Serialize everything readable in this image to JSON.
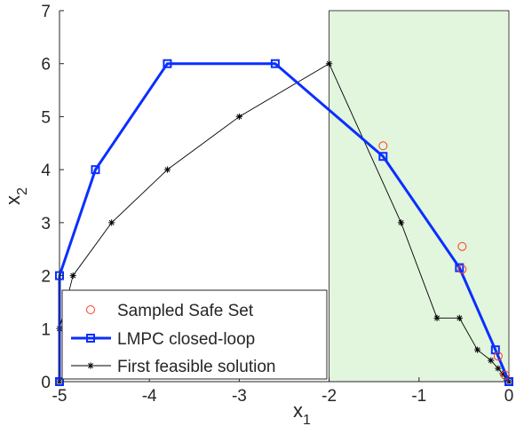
{
  "chart_data": {
    "type": "line",
    "xlim": [
      -5,
      0
    ],
    "ylim": [
      0,
      7
    ],
    "xticks": [
      -5,
      -4,
      -3,
      -2,
      -1,
      0
    ],
    "yticks": [
      0,
      1,
      2,
      3,
      4,
      5,
      6,
      7
    ],
    "xlabel": "x",
    "xlabel_sub": "1",
    "ylabel": "x",
    "ylabel_sub": "2",
    "grid": false,
    "legend_position": "bottom-left",
    "shaded_region": {
      "x": [
        -2,
        0
      ],
      "y": [
        0,
        7
      ],
      "color": "#e2f5dd"
    },
    "series": [
      {
        "name": "Sampled Safe Set",
        "style": "markers",
        "marker": "circle",
        "color": "#ff3b1f",
        "points": [
          [
            -1.4,
            4.45
          ],
          [
            -0.52,
            2.55
          ],
          [
            -0.52,
            2.12
          ],
          [
            -0.12,
            0.48
          ],
          [
            -0.04,
            0.12
          ]
        ]
      },
      {
        "name": "LMPC closed-loop",
        "style": "line",
        "marker": "square",
        "color": "#0a2fff",
        "points": [
          [
            -5,
            0
          ],
          [
            -5,
            2
          ],
          [
            -4.6,
            4
          ],
          [
            -3.8,
            6
          ],
          [
            -2.6,
            6
          ],
          [
            -1.4,
            4.25
          ],
          [
            -0.55,
            2.15
          ],
          [
            -0.15,
            0.6
          ],
          [
            0,
            0
          ]
        ]
      },
      {
        "name": "First feasible solution",
        "style": "line",
        "marker": "star",
        "color": "#000000",
        "points": [
          [
            -5,
            0
          ],
          [
            -5,
            1
          ],
          [
            -4.85,
            2
          ],
          [
            -4.42,
            3
          ],
          [
            -3.8,
            4
          ],
          [
            -3,
            5
          ],
          [
            -2,
            6
          ],
          [
            -1.2,
            3
          ],
          [
            -0.8,
            1.2
          ],
          [
            -0.55,
            1.2
          ],
          [
            -0.35,
            0.6
          ],
          [
            -0.2,
            0.4
          ],
          [
            -0.12,
            0.25
          ],
          [
            -0.07,
            0.15
          ],
          [
            -0.03,
            0.06
          ],
          [
            0,
            0
          ]
        ]
      }
    ]
  }
}
